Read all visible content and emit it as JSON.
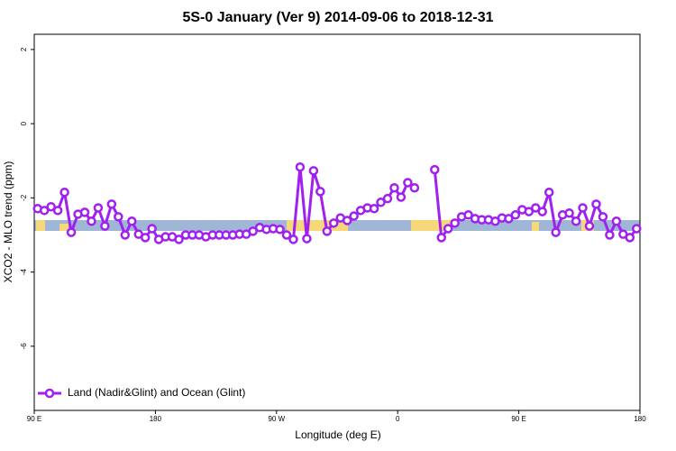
{
  "chart_data": {
    "type": "line",
    "title": "5S-0 January (Ver 9)   2014-09-06 to 2018-12-31",
    "xlabel": "Longitude (deg E)",
    "ylabel": "XCO2 - MLO trend (ppm)",
    "x": [
      92.5,
      97.5,
      102.5,
      107.5,
      112.5,
      117.5,
      122.5,
      127.5,
      132.5,
      137.5,
      142.5,
      147.5,
      152.5,
      157.5,
      162.5,
      167.5,
      172.5,
      177.5,
      182.5,
      187.5,
      192.5,
      197.5,
      202.5,
      207.5,
      212.5,
      217.5,
      222.5,
      227.5,
      232.5,
      237.5,
      242.5,
      247.5,
      252.5,
      257.5,
      262.5,
      267.5,
      272.5,
      277.5,
      282.5,
      287.5,
      292.5,
      297.5,
      302.5,
      307.5,
      312.5,
      317.5,
      322.5,
      327.5,
      332.5,
      337.5,
      342.5,
      347.5,
      352.5,
      357.5,
      362.5,
      367.5,
      372.5,
      377.5,
      382.5,
      387.5,
      392.5,
      397.5,
      402.5,
      407.5,
      412.5,
      417.5,
      422.5,
      427.5,
      432.5,
      437.5,
      442.5,
      447.5,
      452.5,
      457.5,
      462.5,
      467.5,
      472.5,
      477.5,
      482.5,
      487.5,
      492.5,
      497.5,
      502.5,
      507.5,
      512.5,
      517.5,
      522.5,
      527.5,
      532.5,
      537.5
    ],
    "series": [
      {
        "name": "Land (Nadir&Glint) and Ocean (Glint)",
        "color": "#a020f0",
        "values": [
          -2.29,
          -2.34,
          -2.24,
          -2.34,
          -1.85,
          -2.93,
          -2.44,
          -2.39,
          -2.63,
          -2.27,
          -2.76,
          -2.17,
          -2.51,
          -3.0,
          -2.63,
          -2.98,
          -3.07,
          -2.83,
          -3.12,
          -3.05,
          -3.05,
          -3.12,
          -3.0,
          -3.0,
          -3.0,
          -3.05,
          -3.0,
          -3.0,
          -3.0,
          -3.0,
          -2.98,
          -2.98,
          -2.9,
          -2.8,
          -2.85,
          -2.83,
          -2.85,
          -3.0,
          -3.12,
          -1.17,
          -3.1,
          -1.27,
          -1.83,
          -2.9,
          -2.68,
          -2.54,
          -2.61,
          -2.49,
          -2.34,
          -2.27,
          -2.29,
          -2.12,
          -2.02,
          -1.73,
          -1.98,
          -1.59,
          -1.73,
          null,
          null,
          -1.24,
          -3.07,
          -2.83,
          -2.68,
          -2.51,
          -2.46,
          -2.56,
          -2.59,
          -2.59,
          -2.63,
          -2.54,
          -2.56,
          -2.46,
          -2.32,
          -2.37,
          -2.27,
          -2.37,
          -1.85,
          -2.93,
          -2.46,
          -2.41,
          -2.63,
          -2.27,
          -2.76,
          -2.17,
          -2.51,
          -3.0,
          -2.63,
          -2.98,
          -3.07,
          -2.83
        ]
      }
    ],
    "xlim": [
      90,
      540
    ],
    "xticks": [
      {
        "value": 90,
        "label": "90 E"
      },
      180,
      {
        "value": 270,
        "label": "90 W"
      },
      {
        "value": 360,
        "label": "0"
      },
      {
        "value": 450,
        "label": "90 E"
      },
      {
        "value": 540,
        "label": "180"
      }
    ],
    "ylim": [
      -7.73,
      2.41
    ],
    "yticks": [
      -6,
      -4,
      -2,
      0,
      2
    ],
    "legend": "bottom-left"
  }
}
